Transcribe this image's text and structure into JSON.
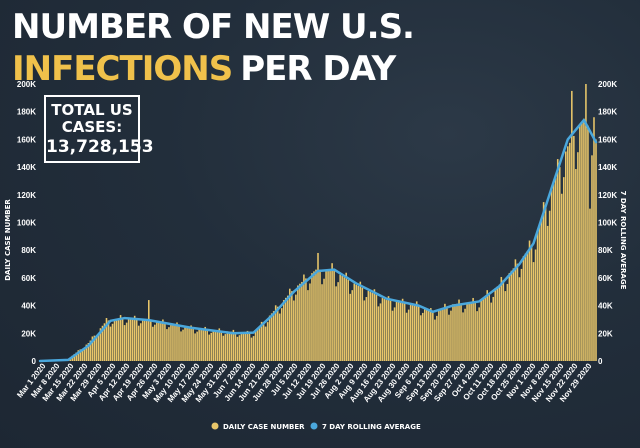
{
  "title_line1": "NUMBER OF NEW U.S.",
  "title_highlight": "INFECTIONS",
  "title_rest": "PER DAY",
  "total_label": "TOTAL US CASES:",
  "total_value": "13,728,153",
  "colors": {
    "bars": "#e8c66a",
    "line": "#4aa7dc",
    "highlight": "#f0c14b",
    "background": "#222e3b"
  },
  "chart_data": {
    "type": "bar",
    "x_start": "2020-03-01",
    "x_end": "2020-12-02",
    "xlabel": "",
    "ylabel_left": "DAILY CASE NUMBER",
    "ylabel_right": "7 DAY ROLLING AVERAGE",
    "ylim": [
      0,
      200000
    ],
    "yticks": [
      "0",
      "20K",
      "40K",
      "60K",
      "80K",
      "100K",
      "120K",
      "140K",
      "160K",
      "180K",
      "200K"
    ],
    "grid": false,
    "legend_position": "bottom",
    "series": [
      {
        "name": "DAILY CASE NUMBER",
        "kind": "bar",
        "knots": [
          [
            "2020-03-01",
            0
          ],
          [
            "2020-03-15",
            1500
          ],
          [
            "2020-03-25",
            13000
          ],
          [
            "2020-04-03",
            29000
          ],
          [
            "2020-04-10",
            31000
          ],
          [
            "2020-04-24",
            30000
          ],
          [
            "2020-05-15",
            24000
          ],
          [
            "2020-06-05",
            21000
          ],
          [
            "2020-06-15",
            20000
          ],
          [
            "2020-06-25",
            36000
          ],
          [
            "2020-07-05",
            52000
          ],
          [
            "2020-07-16",
            66000
          ],
          [
            "2020-07-24",
            66000
          ],
          [
            "2020-08-05",
            55000
          ],
          [
            "2020-08-20",
            44000
          ],
          [
            "2020-09-05",
            40000
          ],
          [
            "2020-09-12",
            35000
          ],
          [
            "2020-09-22",
            41000
          ],
          [
            "2020-10-05",
            43000
          ],
          [
            "2020-10-15",
            55000
          ],
          [
            "2020-10-25",
            72000
          ],
          [
            "2020-11-01",
            85000
          ],
          [
            "2020-11-10",
            125000
          ],
          [
            "2020-11-18",
            155000
          ],
          [
            "2020-11-26",
            175000
          ],
          [
            "2020-12-02",
            160000
          ]
        ],
        "spikes": [
          [
            "2020-04-24",
            44000
          ],
          [
            "2020-07-17",
            78000
          ],
          [
            "2020-11-20",
            195000
          ],
          [
            "2020-11-27",
            200000
          ],
          [
            "2020-11-29",
            110000
          ],
          [
            "2020-12-01",
            176000
          ]
        ]
      },
      {
        "name": "7 DAY ROLLING AVERAGE",
        "kind": "line",
        "points": [
          [
            "2020-03-01",
            0
          ],
          [
            "2020-03-15",
            800
          ],
          [
            "2020-03-25",
            11000
          ],
          [
            "2020-04-05",
            29000
          ],
          [
            "2020-04-12",
            31000
          ],
          [
            "2020-04-24",
            29500
          ],
          [
            "2020-05-15",
            24000
          ],
          [
            "2020-06-05",
            20000
          ],
          [
            "2020-06-15",
            20500
          ],
          [
            "2020-06-25",
            34000
          ],
          [
            "2020-07-05",
            50000
          ],
          [
            "2020-07-17",
            65000
          ],
          [
            "2020-07-25",
            66000
          ],
          [
            "2020-08-05",
            56000
          ],
          [
            "2020-08-20",
            45000
          ],
          [
            "2020-09-05",
            40000
          ],
          [
            "2020-09-12",
            35500
          ],
          [
            "2020-09-22",
            40000
          ],
          [
            "2020-10-05",
            43000
          ],
          [
            "2020-10-15",
            54000
          ],
          [
            "2020-10-25",
            70000
          ],
          [
            "2020-11-01",
            85000
          ],
          [
            "2020-11-10",
            125000
          ],
          [
            "2020-11-18",
            160000
          ],
          [
            "2020-11-26",
            174000
          ],
          [
            "2020-12-02",
            158000
          ]
        ]
      }
    ],
    "x_tick_labels": [
      "Mar 1 2020",
      "Mar 8 2020",
      "Mar 15 2020",
      "Mar 22 2020",
      "Mar 29 2020",
      "Apr 5 2020",
      "Apr 12 2020",
      "Apr 19 2020",
      "Apr 26 2020",
      "May 3 2020",
      "May 10 2020",
      "May 17 2020",
      "May 24 2020",
      "May 31 2020",
      "Jun 7 2020",
      "Jun 14 2020",
      "Jun 21 2020",
      "Jun 28 2020",
      "Jul 5 2020",
      "Jul 12 2020",
      "Jul 19 2020",
      "Jul 26 2020",
      "Aug 2 2020",
      "Aug 9 2020",
      "Aug 16 2020",
      "Aug 23 2020",
      "Aug 30 2020",
      "Sep 6 2020",
      "Sep 13 2020",
      "Sep 20 2020",
      "Sep 27 2020",
      "Oct 4 2020",
      "Oct 11 2020",
      "Oct 18 2020",
      "Oct 25 2020",
      "Nov 1 2020",
      "Nov 8 2020",
      "Nov 15 2020",
      "Nov 22 2020",
      "Nov 29 2020"
    ]
  }
}
